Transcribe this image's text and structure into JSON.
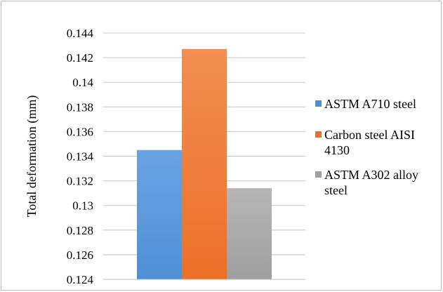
{
  "chart_data": {
    "type": "bar",
    "categories": [
      ""
    ],
    "series": [
      {
        "name": "ASTM A710 steel",
        "values": [
          0.1345
        ],
        "color": "#4f8fd6",
        "color_top": "#6aa3e0"
      },
      {
        "name": "Carbon steel AISI 4130",
        "values": [
          0.1427
        ],
        "color": "#ec6f26",
        "color_top": "#f28e52"
      },
      {
        "name": "ASTM A302 alloy steel",
        "values": [
          0.1314
        ],
        "color": "#9f9f9f",
        "color_top": "#b6b6b6"
      }
    ],
    "legend_lines": [
      [
        "ASTM A710 steel"
      ],
      [
        "Carbon steel AISI",
        "4130"
      ],
      [
        "ASTM A302 alloy",
        "steel"
      ]
    ],
    "title": "",
    "xlabel": "",
    "ylabel": "Total deformation (mm)",
    "ylim": [
      0.124,
      0.144
    ],
    "yticks": [
      "0.124",
      "0.126",
      "0.128",
      "0.13",
      "0.132",
      "0.134",
      "0.136",
      "0.138",
      "0.14",
      "0.142",
      "0.144"
    ],
    "grid": true,
    "legend_position": "right"
  }
}
